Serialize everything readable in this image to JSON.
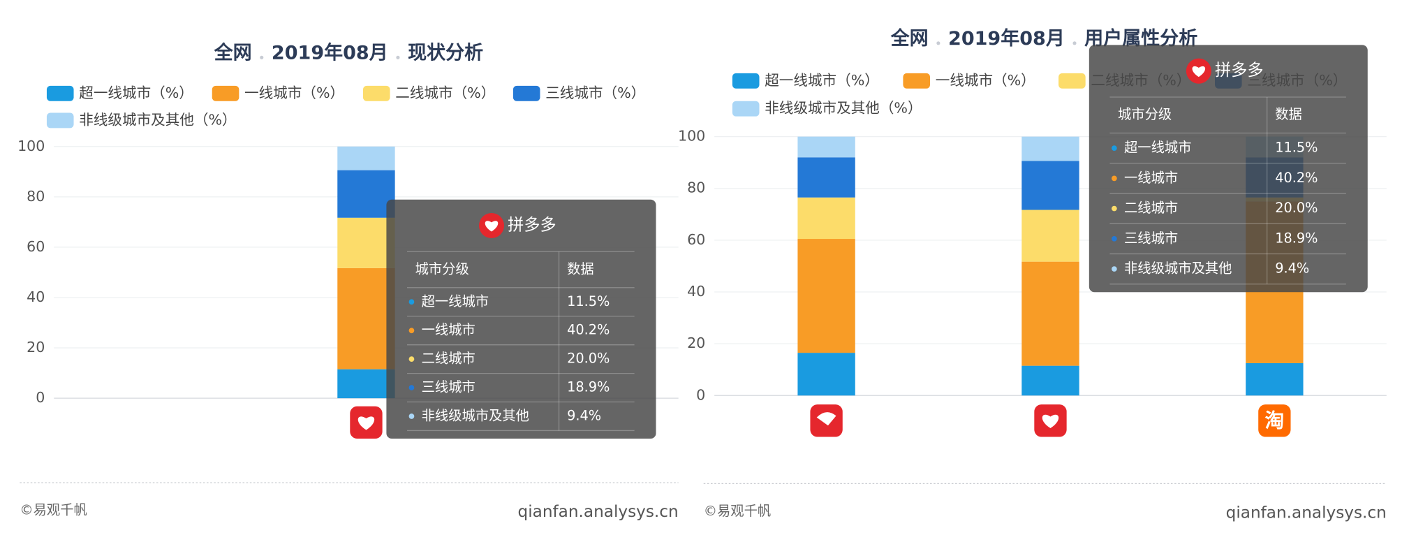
{
  "chart_data": [
    {
      "type": "bar",
      "stacked": true,
      "title": [
        "全网",
        "2019年08月",
        "现状分析"
      ],
      "categories": [
        null
      ],
      "series": [
        {
          "name": "超一线城市（%）",
          "color": "#1a9be0",
          "values": [
            11.5
          ]
        },
        {
          "name": "一线城市（%）",
          "color": "#f89c26",
          "values": [
            40.2
          ]
        },
        {
          "name": "二线城市（%）",
          "color": "#fcdc6a",
          "values": [
            20.0
          ]
        },
        {
          "name": "三线城市（%）",
          "color": "#2479d6",
          "values": [
            18.9
          ]
        },
        {
          "name": "非线级城市及其他（%）",
          "color": "#aad6f6",
          "values": [
            9.4
          ]
        }
      ],
      "ylim": [
        0,
        100
      ],
      "yticks": [
        0,
        20,
        40,
        60,
        80,
        100
      ],
      "grid": true,
      "tooltip": {
        "title": "拼多多",
        "header": [
          "城市分级",
          "数据"
        ],
        "rows": [
          "超一线城市",
          "一线城市",
          "二线城市",
          "三线城市",
          "非线级城市及其他"
        ],
        "value_labels": [
          "11.5%",
          "40.2%",
          "20.0%",
          "18.9%",
          "9.4%"
        ]
      },
      "footer": [
        "©易观千帆",
        "qianfan.analysys.cn"
      ]
    },
    {
      "type": "bar",
      "stacked": true,
      "title": [
        "全网",
        "2019年08月",
        "用户属性分析"
      ],
      "categories": [
        null,
        null,
        "淘"
      ],
      "series": [
        {
          "name": "超一线城市（%）",
          "color": "#1a9be0",
          "values": [
            16.5,
            11.5,
            12.5
          ]
        },
        {
          "name": "一线城市（%）",
          "color": "#f89c26",
          "values": [
            44.0,
            40.2,
            62.5
          ]
        },
        {
          "name": "二线城市（%）",
          "color": "#fcdc6a",
          "values": [
            16.0,
            20.0,
            1.5
          ]
        },
        {
          "name": "三线城市（%）",
          "color": "#2479d6",
          "values": [
            15.5,
            18.9,
            15.5
          ]
        },
        {
          "name": "非线级城市及其他（%）",
          "color": "#aad6f6",
          "values": [
            8.0,
            9.4,
            8.0
          ]
        }
      ],
      "ylim": [
        0,
        100
      ],
      "yticks": [
        0,
        20,
        40,
        60,
        80,
        100
      ],
      "grid": true,
      "tooltip": {
        "title": "拼多多",
        "header": [
          "城市分级",
          "数据"
        ],
        "rows": [
          "超一线城市",
          "一线城市",
          "二线城市",
          "三线城市",
          "非线级城市及其他"
        ],
        "value_labels": [
          "11.5%",
          "40.2%",
          "20.0%",
          "18.9%",
          "9.4%"
        ]
      },
      "footer": [
        "©易观千帆",
        "qianfan.analysys.cn"
      ]
    }
  ]
}
